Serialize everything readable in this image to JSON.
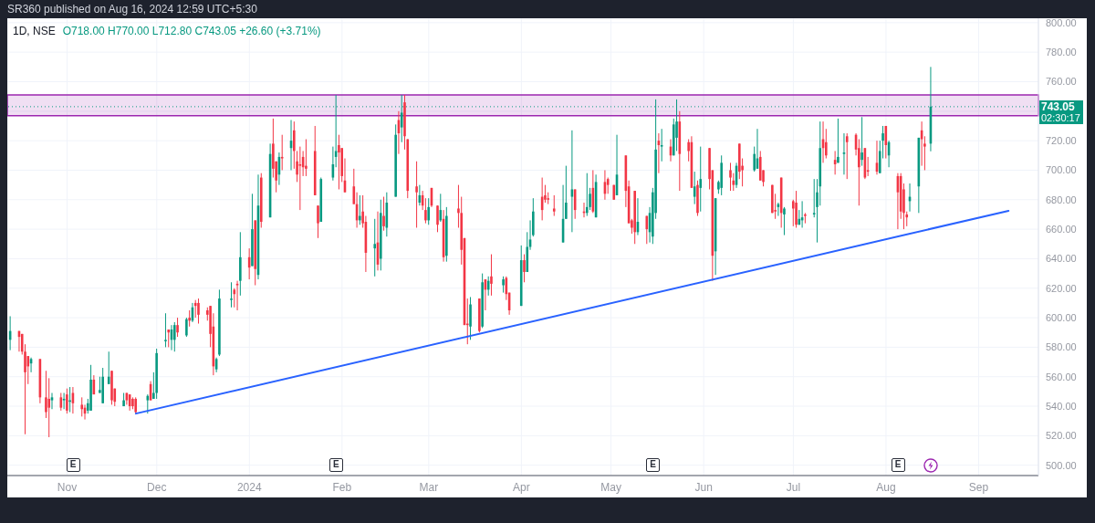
{
  "chart_data": {
    "type": "candlestick",
    "title": "1D, NSE",
    "subtitle": "O718.00 H770.00 L712.80 C743.05 +26.60 (+3.71%)",
    "annotations": [
      "SR360 published on Aug 16, 2024 12:59 UTC+5:30",
      "02:30:17",
      {
        "text": "E",
        "x": "2023-11-03"
      },
      {
        "text": "E",
        "x": "2024-01-30"
      },
      {
        "text": "E",
        "x": "2024-05-15"
      },
      {
        "text": "E",
        "x": "2024-08-05"
      }
    ],
    "x": [
      "2023-10-13",
      "2023-10-16",
      "2023-10-17",
      "2023-10-18",
      "2023-10-19",
      "2023-10-20",
      "2023-10-23",
      "2023-10-25",
      "2023-10-26",
      "2023-10-27",
      "2023-10-30",
      "2023-10-31",
      "2023-11-01",
      "2023-11-02",
      "2023-11-03",
      "2023-11-06",
      "2023-11-07",
      "2023-11-08",
      "2023-11-09",
      "2023-11-10",
      "2023-11-12",
      "2023-11-13",
      "2023-11-15",
      "2023-11-16",
      "2023-11-17",
      "2023-11-20",
      "2023-11-21",
      "2023-11-22",
      "2023-11-23",
      "2023-11-24",
      "2023-11-28",
      "2023-11-29",
      "2023-11-30",
      "2023-12-01",
      "2023-12-04",
      "2023-12-05",
      "2023-12-06",
      "2023-12-07",
      "2023-12-08",
      "2023-12-11",
      "2023-12-12",
      "2023-12-13",
      "2023-12-14",
      "2023-12-15",
      "2023-12-18",
      "2023-12-19",
      "2023-12-20",
      "2023-12-21",
      "2023-12-22",
      "2023-12-26",
      "2023-12-27",
      "2023-12-28",
      "2023-12-29",
      "2024-01-01",
      "2024-01-02",
      "2024-01-03",
      "2024-01-04",
      "2024-01-05",
      "2024-01-08",
      "2024-01-09",
      "2024-01-10",
      "2024-01-11",
      "2024-01-12",
      "2024-01-15",
      "2024-01-16",
      "2024-01-17",
      "2024-01-18",
      "2024-01-19",
      "2024-01-20",
      "2024-01-23",
      "2024-01-24",
      "2024-01-25",
      "2024-01-29",
      "2024-01-30",
      "2024-01-31",
      "2024-02-01",
      "2024-02-02",
      "2024-02-05",
      "2024-02-06",
      "2024-02-07",
      "2024-02-08",
      "2024-02-09",
      "2024-02-12",
      "2024-02-13",
      "2024-02-14",
      "2024-02-15",
      "2024-02-16",
      "2024-02-19",
      "2024-02-20",
      "2024-02-21",
      "2024-02-22",
      "2024-02-23",
      "2024-02-26",
      "2024-02-27",
      "2024-02-28",
      "2024-02-29",
      "2024-03-01",
      "2024-03-02",
      "2024-03-04",
      "2024-03-05",
      "2024-03-06",
      "2024-03-07",
      "2024-03-11",
      "2024-03-12",
      "2024-03-13",
      "2024-03-14",
      "2024-03-15",
      "2024-03-18",
      "2024-03-19",
      "2024-03-20",
      "2024-03-21",
      "2024-03-22",
      "2024-03-26",
      "2024-03-27",
      "2024-03-28",
      "2024-04-01",
      "2024-04-02",
      "2024-04-03",
      "2024-04-04",
      "2024-04-05",
      "2024-04-08",
      "2024-04-09",
      "2024-04-10",
      "2024-04-12",
      "2024-04-15",
      "2024-04-16",
      "2024-04-18",
      "2024-04-19",
      "2024-04-22",
      "2024-04-23",
      "2024-04-24",
      "2024-04-25",
      "2024-04-26",
      "2024-04-29",
      "2024-04-30",
      "2024-05-02",
      "2024-05-03",
      "2024-05-06",
      "2024-05-07",
      "2024-05-08",
      "2024-05-09",
      "2024-05-10",
      "2024-05-13",
      "2024-05-14",
      "2024-05-15",
      "2024-05-16",
      "2024-05-17",
      "2024-05-18",
      "2024-05-21",
      "2024-05-22",
      "2024-05-23",
      "2024-05-24",
      "2024-05-27",
      "2024-05-28",
      "2024-05-29",
      "2024-05-30",
      "2024-05-31",
      "2024-06-03",
      "2024-06-04",
      "2024-06-05",
      "2024-06-06",
      "2024-06-07",
      "2024-06-10",
      "2024-06-11",
      "2024-06-12",
      "2024-06-13",
      "2024-06-14",
      "2024-06-18",
      "2024-06-19",
      "2024-06-20",
      "2024-06-21",
      "2024-06-24",
      "2024-06-25",
      "2024-06-26",
      "2024-06-27",
      "2024-06-28",
      "2024-07-01",
      "2024-07-02",
      "2024-07-03",
      "2024-07-04",
      "2024-07-05",
      "2024-07-08",
      "2024-07-09",
      "2024-07-10",
      "2024-07-11",
      "2024-07-12",
      "2024-07-15",
      "2024-07-16",
      "2024-07-18",
      "2024-07-19",
      "2024-07-22",
      "2024-07-23",
      "2024-07-24",
      "2024-07-25",
      "2024-07-26",
      "2024-07-29",
      "2024-07-30",
      "2024-07-31",
      "2024-08-01",
      "2024-08-02",
      "2024-08-05",
      "2024-08-06",
      "2024-08-07",
      "2024-08-08",
      "2024-08-09",
      "2024-08-12",
      "2024-08-13",
      "2024-08-14",
      "2024-08-16"
    ],
    "ohlc": [
      [
        585,
        601,
        578,
        591
      ],
      [
        591,
        591,
        577,
        587
      ],
      [
        589,
        589,
        575,
        577
      ],
      [
        577,
        582,
        521,
        563
      ],
      [
        574,
        574,
        555,
        567
      ],
      [
        569,
        573,
        563,
        572
      ],
      [
        572,
        572,
        542,
        546
      ],
      [
        546,
        564,
        532,
        536
      ],
      [
        545,
        559,
        519,
        539
      ],
      [
        544,
        549,
        538,
        546
      ],
      [
        546,
        549,
        537,
        539
      ],
      [
        544,
        549,
        538,
        545
      ],
      [
        548,
        552,
        535,
        537
      ],
      [
        543,
        553,
        536,
        544
      ],
      [
        549,
        553,
        535,
        542
      ],
      [
        541,
        546,
        533,
        538
      ],
      [
        539,
        541,
        531,
        535
      ],
      [
        537,
        545,
        535,
        542
      ],
      [
        537,
        568,
        537,
        558
      ],
      [
        558,
        561,
        548,
        548
      ],
      [
        549,
        560,
        549,
        551
      ],
      [
        542,
        566,
        542,
        560
      ],
      [
        555,
        577,
        555,
        560
      ],
      [
        564,
        564,
        541,
        544
      ],
      [
        552,
        552,
        540,
        543
      ],
      [
        540,
        549,
        540,
        544
      ],
      [
        549,
        549,
        541,
        544
      ],
      [
        548,
        548,
        537,
        540
      ],
      [
        545,
        546,
        538,
        540
      ],
      [
        545,
        546,
        535,
        536
      ],
      [
        544,
        548,
        535,
        547
      ],
      [
        555,
        557,
        544,
        544
      ],
      [
        545,
        563,
        545,
        549
      ],
      [
        549,
        579,
        545,
        576
      ],
      [
        584,
        603,
        580,
        585
      ],
      [
        592,
        592,
        580,
        590
      ],
      [
        585,
        595,
        578,
        592
      ],
      [
        585,
        597,
        577,
        595
      ],
      [
        595,
        600,
        587,
        590
      ],
      [
        588,
        600,
        587,
        599
      ],
      [
        600,
        605,
        594,
        598
      ],
      [
        598,
        610,
        597,
        607
      ],
      [
        610,
        612,
        600,
        608
      ],
      [
        610,
        613,
        596,
        602
      ],
      [
        605,
        607,
        598,
        602
      ],
      [
        608,
        608,
        580,
        589
      ],
      [
        594,
        603,
        561,
        567
      ],
      [
        565,
        573,
        563,
        572
      ],
      [
        575,
        619,
        574,
        613
      ],
      [
        612,
        624,
        607,
        613
      ],
      [
        619,
        620,
        607,
        616
      ],
      [
        623,
        625,
        605,
        622
      ],
      [
        625,
        658,
        615,
        641
      ],
      [
        641,
        647,
        626,
        634
      ],
      [
        635,
        684,
        635,
        660
      ],
      [
        666,
        666,
        622,
        633
      ],
      [
        629,
        697,
        626,
        676
      ],
      [
        695,
        698,
        661,
        665
      ],
      [
        668,
        718,
        668,
        711
      ],
      [
        718,
        735,
        695,
        701
      ],
      [
        706,
        706,
        685,
        693
      ],
      [
        697,
        712,
        690,
        709
      ],
      [
        709,
        724,
        700,
        708
      ],
      [
        715,
        734,
        700,
        720
      ],
      [
        727,
        733,
        701,
        713
      ],
      [
        706,
        713,
        692,
        697
      ],
      [
        704,
        716,
        673,
        703
      ],
      [
        709,
        713,
        696,
        702
      ],
      [
        703,
        721,
        696,
        701
      ],
      [
        713,
        730,
        683,
        683
      ],
      [
        676,
        676,
        654,
        664
      ],
      [
        665,
        695,
        665,
        694
      ],
      [
        695,
        716,
        693,
        704
      ],
      [
        709,
        751,
        702,
        713
      ],
      [
        717,
        724,
        687,
        712
      ],
      [
        715,
        715,
        692,
        696
      ],
      [
        693,
        708,
        685,
        685
      ],
      [
        689,
        701,
        677,
        677
      ],
      [
        677,
        685,
        661,
        666
      ],
      [
        666,
        683,
        663,
        669
      ],
      [
        672,
        683,
        661,
        664
      ],
      [
        665,
        669,
        631,
        644
      ],
      [
        647,
        667,
        628,
        650
      ],
      [
        651,
        672,
        632,
        636
      ],
      [
        640,
        680,
        632,
        671
      ],
      [
        669,
        682,
        659,
        662
      ],
      [
        661,
        685,
        655,
        678
      ],
      [
        682,
        731,
        682,
        724
      ],
      [
        734,
        740,
        711,
        725
      ],
      [
        729,
        751,
        719,
        739
      ],
      [
        746,
        751,
        714,
        723
      ],
      [
        721,
        721,
        681,
        686
      ],
      [
        689,
        706,
        661,
        685
      ],
      [
        678,
        690,
        676,
        683
      ],
      [
        683,
        686,
        673,
        676
      ],
      [
        673,
        681,
        664,
        666
      ],
      [
        666,
        681,
        663,
        675
      ],
      [
        688,
        688,
        675,
        676
      ],
      [
        676,
        676,
        658,
        663
      ],
      [
        666,
        684,
        665,
        673
      ],
      [
        667,
        673,
        638,
        641
      ],
      [
        642,
        675,
        638,
        669
      ],
      [
        674,
        690,
        661,
        671
      ],
      [
        671,
        682,
        636,
        646
      ],
      [
        654,
        654,
        595,
        595
      ],
      [
        596,
        613,
        582,
        595
      ],
      [
        594,
        614,
        585,
        609
      ],
      [
        613,
        613,
        590,
        591
      ],
      [
        594,
        630,
        593,
        624
      ],
      [
        626,
        626,
        605,
        619
      ],
      [
        619,
        628,
        615,
        625
      ],
      [
        628,
        643,
        615,
        623
      ],
      [
        622,
        628,
        617,
        626
      ],
      [
        627,
        628,
        612,
        616
      ],
      [
        617,
        617,
        602,
        605
      ],
      [
        608,
        649,
        608,
        639
      ],
      [
        639,
        643,
        624,
        631
      ],
      [
        631,
        658,
        631,
        648
      ],
      [
        648,
        666,
        646,
        653
      ],
      [
        656,
        681,
        655,
        672
      ],
      [
        682,
        695,
        666,
        673
      ],
      [
        683,
        690,
        678,
        680
      ],
      [
        681,
        685,
        677,
        680
      ],
      [
        674,
        683,
        669,
        672
      ],
      [
        651,
        690,
        651,
        667
      ],
      [
        667,
        703,
        667,
        678
      ],
      [
        682,
        727,
        658,
        687
      ],
      [
        687,
        687,
        667,
        673
      ],
      [
        672,
        678,
        668,
        671
      ],
      [
        671,
        698,
        669,
        675
      ],
      [
        675,
        688,
        673,
        684
      ],
      [
        688,
        700,
        671,
        672
      ],
      [
        668,
        697,
        668,
        692
      ],
      [
        692,
        700,
        680,
        684
      ],
      [
        694,
        695,
        684,
        690
      ],
      [
        690,
        690,
        680,
        680
      ],
      [
        683,
        724,
        683,
        697
      ],
      [
        710,
        710,
        675,
        686
      ],
      [
        689,
        693,
        664,
        664
      ],
      [
        666,
        667,
        657,
        661
      ],
      [
        686,
        686,
        650,
        658
      ],
      [
        658,
        681,
        656,
        665
      ],
      [
        669,
        669,
        650,
        660
      ],
      [
        658,
        675,
        651,
        671
      ],
      [
        655,
        688,
        650,
        685
      ],
      [
        671,
        748,
        667,
        714
      ],
      [
        720,
        725,
        698,
        717
      ],
      [
        716,
        728,
        706,
        717
      ],
      [
        716,
        721,
        706,
        710
      ],
      [
        710,
        735,
        710,
        731
      ],
      [
        722,
        748,
        713,
        733
      ],
      [
        733,
        740,
        686,
        711
      ],
      [
        719,
        721,
        706,
        713
      ],
      [
        719,
        723,
        688,
        688
      ],
      [
        682,
        699,
        677,
        689
      ],
      [
        690,
        693,
        669,
        671
      ],
      [
        688,
        716,
        672,
        694
      ],
      [
        715,
        715,
        687,
        694
      ],
      [
        700,
        700,
        625,
        642
      ],
      [
        645,
        681,
        629,
        681
      ],
      [
        687,
        693,
        684,
        692
      ],
      [
        688,
        710,
        683,
        705
      ],
      [
        700,
        705,
        686,
        695
      ],
      [
        693,
        698,
        686,
        690
      ],
      [
        690,
        705,
        688,
        703
      ],
      [
        718,
        718,
        694,
        699
      ],
      [
        703,
        708,
        689,
        700
      ],
      [
        700,
        716,
        699,
        711
      ],
      [
        701,
        728,
        701,
        708
      ],
      [
        709,
        713,
        693,
        693
      ],
      [
        700,
        700,
        689,
        692
      ],
      [
        690,
        690,
        671,
        671
      ],
      [
        673,
        684,
        667,
        672
      ],
      [
        675,
        678,
        669,
        677
      ],
      [
        695,
        695,
        661,
        671
      ],
      [
        670,
        675,
        656,
        674
      ],
      [
        679,
        680,
        662,
        674
      ],
      [
        678,
        686,
        661,
        663
      ],
      [
        663,
        673,
        663,
        667
      ],
      [
        666,
        679,
        661,
        668
      ],
      [
        670,
        671,
        664,
        669
      ],
      [
        670,
        694,
        668,
        671
      ],
      [
        675,
        694,
        651,
        685
      ],
      [
        689,
        733,
        676,
        715
      ],
      [
        721,
        733,
        705,
        715
      ],
      [
        719,
        728,
        708,
        710
      ],
      [
        707,
        713,
        697,
        704
      ],
      [
        705,
        735,
        705,
        709
      ],
      [
        711,
        725,
        697,
        712
      ],
      [
        723,
        725,
        694,
        719
      ],
      [
        724,
        725,
        710,
        714
      ],
      [
        715,
        721,
        676,
        702
      ],
      [
        707,
        736,
        703,
        712
      ],
      [
        715,
        715,
        694,
        695
      ],
      [
        700,
        709,
        696,
        699
      ],
      [
        705,
        720,
        697,
        699
      ],
      [
        698,
        720,
        698,
        713
      ],
      [
        720,
        730,
        708,
        725
      ],
      [
        730,
        730,
        708,
        717
      ],
      [
        710,
        720,
        702,
        719
      ],
      [
        696,
        698,
        660,
        685
      ],
      [
        696,
        698,
        667,
        672
      ],
      [
        687,
        691,
        660,
        671
      ],
      [
        670,
        672,
        662,
        668
      ],
      [
        679,
        691,
        672,
        682
      ],
      [
        689,
        722,
        671,
        722
      ],
      [
        727,
        733,
        703,
        721
      ],
      [
        718,
        723,
        700,
        716
      ],
      [
        718,
        770,
        712.8,
        743.05
      ]
    ],
    "colors": [
      "#089981",
      "#f23645",
      "#f23645",
      "#f23645",
      "#f23645",
      "#089981",
      "#f23645",
      "#f23645",
      "#f23645",
      "#089981",
      "#f23645",
      "#089981",
      "#f23645",
      "#089981",
      "#f23645",
      "#f23645",
      "#f23645",
      "#089981",
      "#089981",
      "#f23645",
      "#089981",
      "#089981",
      "#089981",
      "#f23645",
      "#f23645",
      "#089981",
      "#f23645",
      "#f23645",
      "#f23645",
      "#f23645",
      "#089981",
      "#f23645",
      "#089981",
      "#089981",
      "#089981",
      "#f23645",
      "#089981",
      "#089981",
      "#f23645",
      "#089981",
      "#f23645",
      "#089981",
      "#f23645",
      "#f23645",
      "#f23645",
      "#f23645",
      "#f23645",
      "#089981",
      "#089981",
      "#089981",
      "#f23645",
      "#f23645",
      "#089981",
      "#f23645",
      "#089981",
      "#f23645",
      "#089981",
      "#f23645",
      "#089981",
      "#f23645",
      "#f23645",
      "#089981",
      "#f23645",
      "#089981",
      "#f23645",
      "#f23645",
      "#f23645",
      "#f23645",
      "#f23645",
      "#f23645",
      "#f23645",
      "#089981",
      "#089981",
      "#089981",
      "#f23645",
      "#f23645",
      "#f23645",
      "#f23645",
      "#f23645",
      "#089981",
      "#f23645",
      "#f23645",
      "#089981",
      "#f23645",
      "#089981",
      "#f23645",
      "#089981",
      "#089981",
      "#f23645",
      "#089981",
      "#f23645",
      "#f23645",
      "#f23645",
      "#089981",
      "#f23645",
      "#f23645",
      "#089981",
      "#f23645",
      "#f23645",
      "#089981",
      "#f23645",
      "#089981",
      "#f23645",
      "#f23645",
      "#f23645",
      "#f23645",
      "#089981",
      "#f23645",
      "#089981",
      "#f23645",
      "#089981",
      "#f23645",
      "#089981",
      "#f23645",
      "#f23645",
      "#089981",
      "#f23645",
      "#089981",
      "#089981",
      "#089981",
      "#f23645",
      "#f23645",
      "#f23645",
      "#f23645",
      "#089981",
      "#089981",
      "#089981",
      "#f23645",
      "#f23645",
      "#089981",
      "#089981",
      "#f23645",
      "#089981",
      "#f23645",
      "#f23645",
      "#f23645",
      "#089981",
      "#f23645",
      "#f23645",
      "#f23645",
      "#f23645",
      "#089981",
      "#f23645",
      "#089981",
      "#089981",
      "#089981",
      "#f23645",
      "#089981",
      "#f23645",
      "#089981",
      "#089981",
      "#f23645",
      "#f23645",
      "#f23645",
      "#089981",
      "#f23645",
      "#089981",
      "#f23645",
      "#f23645",
      "#089981",
      "#089981",
      "#089981",
      "#f23645",
      "#f23645",
      "#089981",
      "#f23645",
      "#f23645",
      "#089981",
      "#089981",
      "#f23645",
      "#f23645",
      "#f23645",
      "#f23645",
      "#089981",
      "#f23645",
      "#089981",
      "#f23645",
      "#f23645",
      "#089981",
      "#089981",
      "#f23645",
      "#089981",
      "#089981",
      "#089981",
      "#f23645",
      "#f23645",
      "#f23645",
      "#089981",
      "#089981",
      "#f23645",
      "#f23645",
      "#f23645",
      "#089981",
      "#f23645",
      "#f23645",
      "#f23645",
      "#089981",
      "#089981",
      "#f23645",
      "#089981",
      "#f23645",
      "#f23645",
      "#f23645",
      "#f23645",
      "#089981",
      "#089981",
      "#f23645",
      "#f23645",
      "#089981"
    ],
    "series": [
      {
        "type": "line",
        "color": "#2962ff",
        "x": [
          "2023-11-24",
          "2024-09-11"
        ],
        "values": [
          535,
          672.5
        ]
      }
    ],
    "xlim": [
      "2023-10-12",
      "2024-09-21"
    ],
    "xticks": [
      {
        "value": "2023-11-01",
        "label": "Nov"
      },
      {
        "value": "2023-12-01",
        "label": "Dec"
      },
      {
        "value": "2024-01-01",
        "label": "2024"
      },
      {
        "value": "2024-02-01",
        "label": "Feb"
      },
      {
        "value": "2024-03-01",
        "label": "Mar"
      },
      {
        "value": "2024-04-01",
        "label": "Apr"
      },
      {
        "value": "2024-05-01",
        "label": "May"
      },
      {
        "value": "2024-06-01",
        "label": "Jun"
      },
      {
        "value": "2024-07-01",
        "label": "Jul"
      },
      {
        "value": "2024-08-01",
        "label": "Aug"
      },
      {
        "value": "2024-09-01",
        "label": "Sep"
      }
    ],
    "ylim": [
      493,
      803
    ],
    "yticks": [
      {
        "value": 500,
        "label": "500.00"
      },
      {
        "value": 520,
        "label": "520.00"
      },
      {
        "value": 540,
        "label": "540.00"
      },
      {
        "value": 560,
        "label": "560.00"
      },
      {
        "value": 580,
        "label": "580.00"
      },
      {
        "value": 600,
        "label": "600.00"
      },
      {
        "value": 620,
        "label": "620.00"
      },
      {
        "value": 640,
        "label": "640.00"
      },
      {
        "value": 660,
        "label": "660.00"
      },
      {
        "value": 680,
        "label": "680.00"
      },
      {
        "value": 700,
        "label": "700.00"
      },
      {
        "value": 720,
        "label": "720.00"
      },
      {
        "value": 740,
        "label": null
      },
      {
        "value": 760,
        "label": "760.00"
      },
      {
        "value": 780,
        "label": "780.00"
      },
      {
        "value": 800,
        "label": "800.00"
      }
    ],
    "grid": true,
    "ref_lines": [
      {
        "axis": "y",
        "value": 743.05,
        "label": "743.05",
        "color": "#089981",
        "line_style": "dotted"
      }
    ],
    "bands": [
      {
        "axis": "y",
        "from": 737,
        "to": 751,
        "color": "#9c27b0"
      }
    ]
  }
}
